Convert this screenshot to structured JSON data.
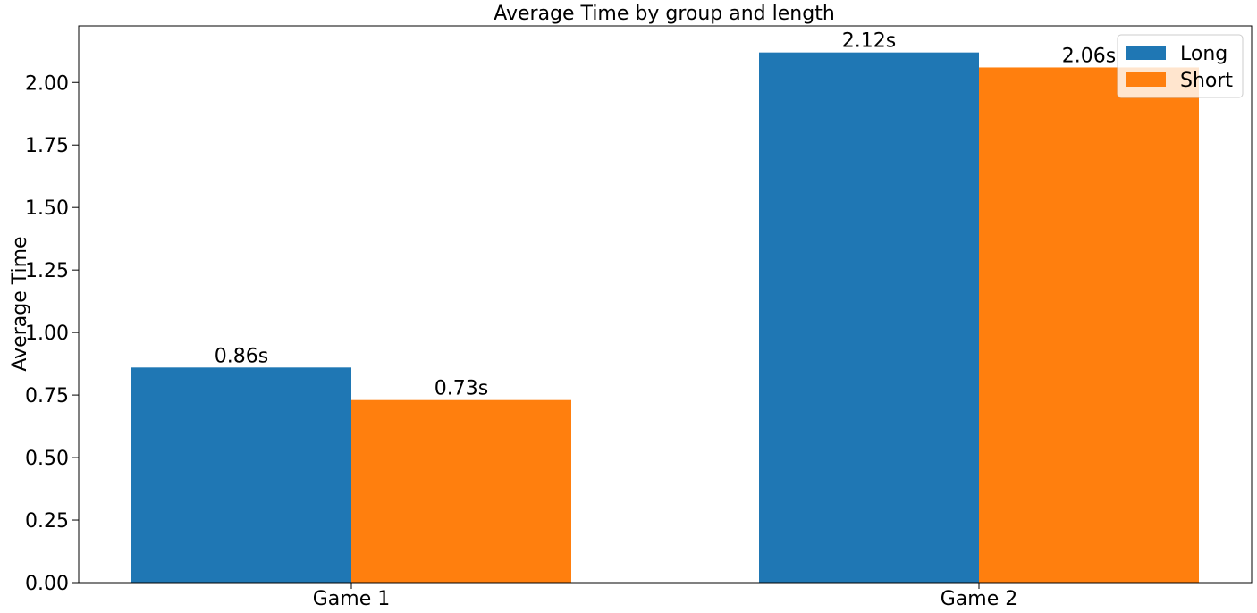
{
  "chart_data": {
    "type": "bar",
    "title": "Average Time by group and length",
    "xlabel": "",
    "ylabel": "Average Time",
    "categories": [
      "Game 1",
      "Game 2"
    ],
    "series": [
      {
        "name": "Long",
        "values": [
          0.86,
          2.12
        ],
        "labels": [
          "0.86s",
          "2.12s"
        ],
        "color": "#1f77b4"
      },
      {
        "name": "Short",
        "values": [
          0.73,
          2.06
        ],
        "labels": [
          "0.73s",
          "2.06s"
        ],
        "color": "#ff7f0e"
      }
    ],
    "ylim": [
      0,
      2.226
    ],
    "yticks": [
      0.0,
      0.25,
      0.5,
      0.75,
      1.0,
      1.25,
      1.5,
      1.75,
      2.0
    ],
    "ytick_labels": [
      "0.00",
      "0.25",
      "0.50",
      "0.75",
      "1.00",
      "1.25",
      "1.50",
      "1.75",
      "2.00"
    ],
    "grid": false,
    "legend_position": "top-right"
  }
}
